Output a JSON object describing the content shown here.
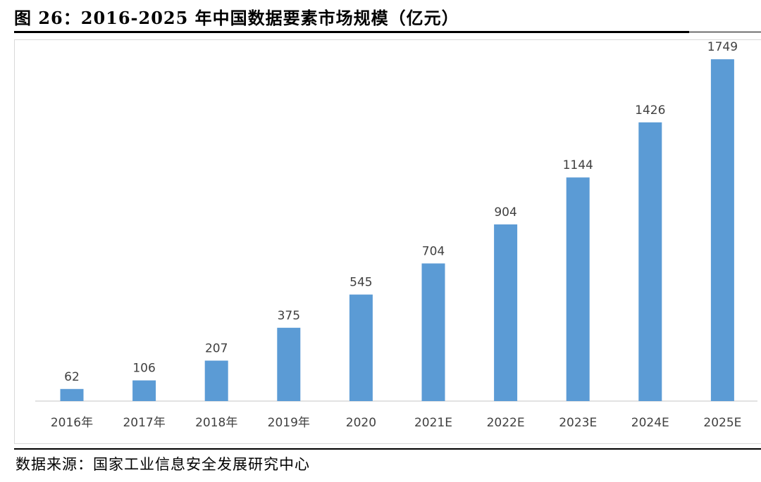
{
  "figure": {
    "title": "图 26：2016-2025 年中国数据要素市场规模（亿元）",
    "source": "数据来源：国家工业信息安全发展研究中心"
  },
  "chart_data": {
    "type": "bar",
    "title": "",
    "xlabel": "",
    "ylabel": "",
    "categories": [
      "2016年",
      "2017年",
      "2018年",
      "2019年",
      "2020",
      "2021E",
      "2022E",
      "2023E",
      "2024E",
      "2025E"
    ],
    "values": [
      62,
      106,
      207,
      375,
      545,
      704,
      904,
      1144,
      1426,
      1749
    ],
    "data_labels": [
      "62",
      "106",
      "207",
      "375",
      "545",
      "704",
      "904",
      "1144",
      "1426",
      "1749"
    ],
    "ylim": [
      0,
      1800
    ],
    "grid": false,
    "legend": "none",
    "bar_color": "#5b9bd5",
    "axis_color": "#d9d9d9",
    "label_color": "#404040"
  }
}
